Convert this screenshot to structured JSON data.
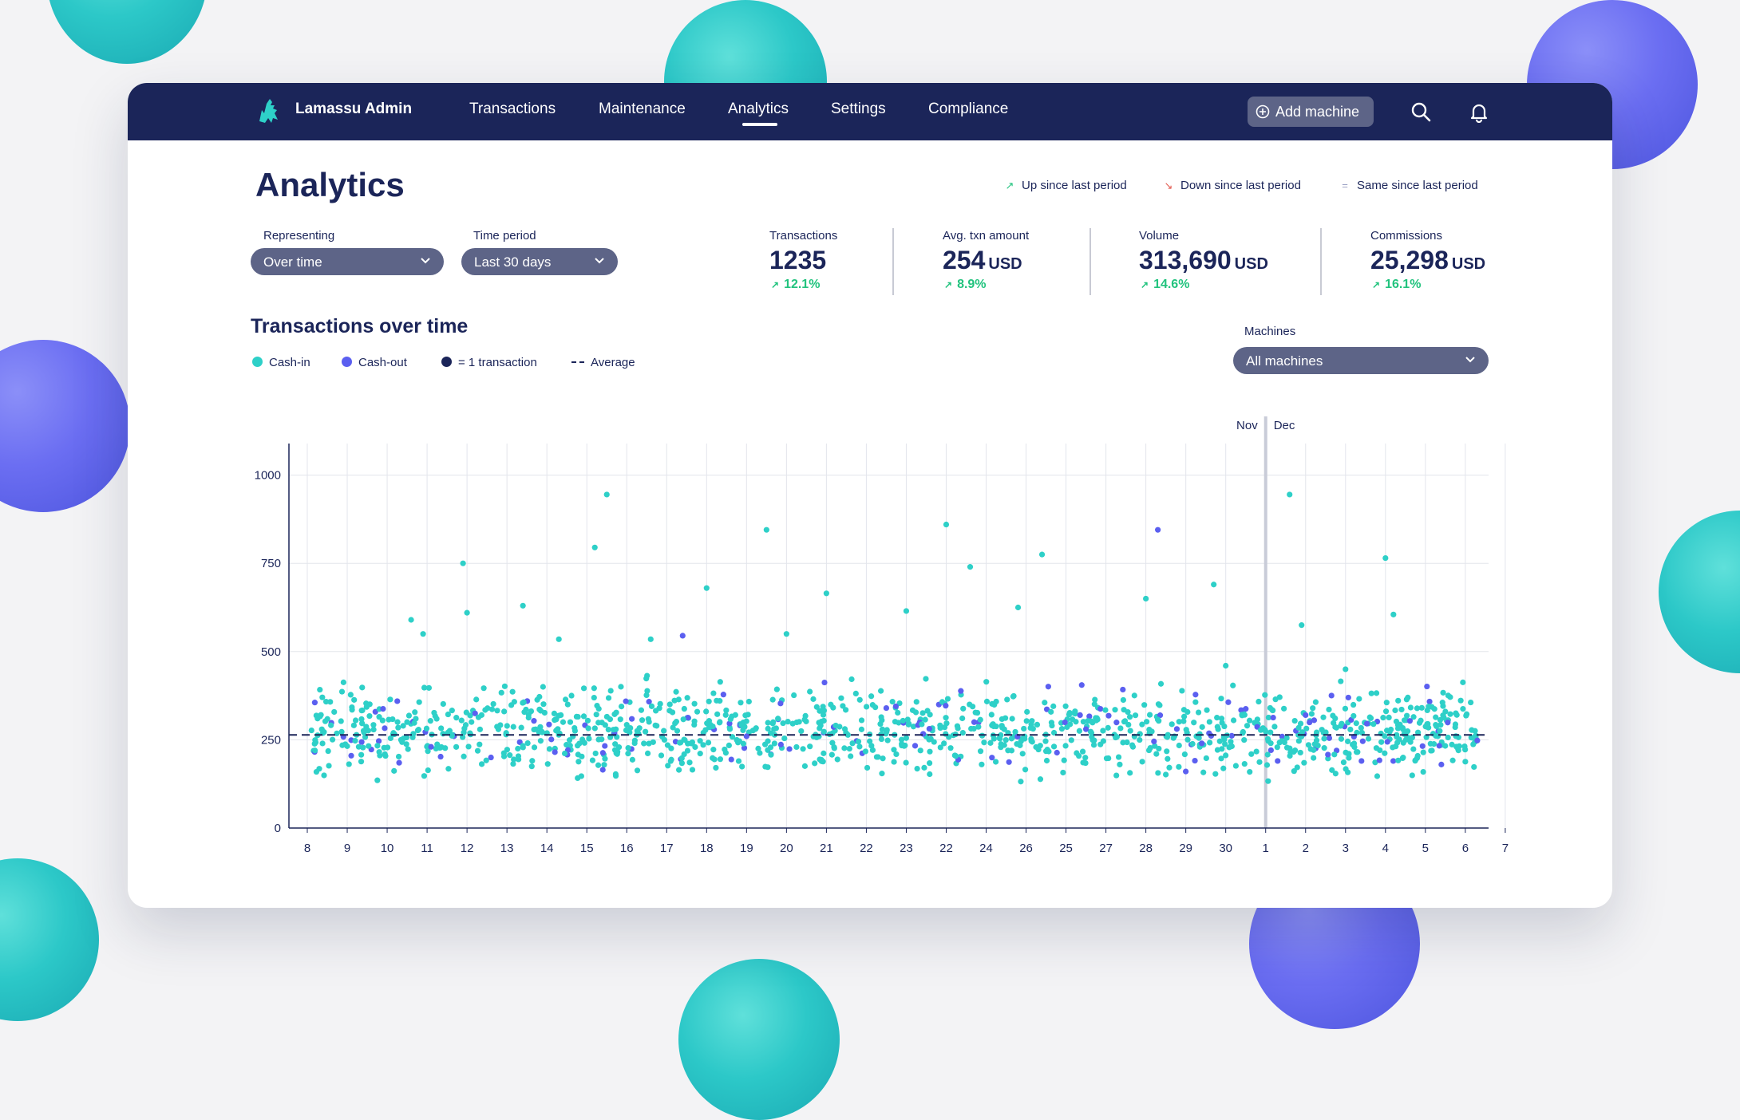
{
  "app": {
    "brand": "Lamassu Admin"
  },
  "nav": {
    "items": [
      {
        "label": "Transactions"
      },
      {
        "label": "Maintenance"
      },
      {
        "label": "Analytics",
        "active": true
      },
      {
        "label": "Settings"
      },
      {
        "label": "Compliance"
      }
    ],
    "add_machine_label": "Add machine",
    "icons": [
      "search-icon",
      "bell-icon"
    ]
  },
  "page": {
    "title": "Analytics",
    "trend_legend": {
      "up": "Up since last period",
      "down": "Down since last period",
      "same": "Same since last period"
    },
    "filters": {
      "representing_label": "Representing",
      "representing_value": "Over time",
      "period_label": "Time period",
      "period_value": "Last 30 days",
      "machines_label": "Machines",
      "machines_value": "All machines"
    },
    "kpis": [
      {
        "label": "Transactions",
        "value": "1235",
        "unit": "",
        "change": "12.1%",
        "trend": "up"
      },
      {
        "label": "Avg. txn amount",
        "value": "254",
        "unit": "USD",
        "change": "8.9%",
        "trend": "up"
      },
      {
        "label": "Volume",
        "value": "313,690",
        "unit": "USD",
        "change": "14.6%",
        "trend": "up"
      },
      {
        "label": "Commissions",
        "value": "25,298",
        "unit": "USD",
        "change": "16.1%",
        "trend": "up"
      }
    ]
  },
  "colors": {
    "navy": "#1b2559",
    "cash_in": "#2ed0c8",
    "cash_out": "#5b5ff0",
    "up": "#22c37e",
    "down": "#e2574c",
    "same": "#9aa0c4",
    "select_bg": "#5d6487"
  },
  "chart": {
    "title": "Transactions over time",
    "legend": {
      "cash_in": "Cash-in",
      "cash_out": "Cash-out",
      "one_txn": "= 1 transaction",
      "average": "Average"
    }
  },
  "chart_data": {
    "type": "scatter",
    "title": "Transactions over time",
    "ylim": [
      0,
      1100
    ],
    "yticks": [
      0,
      250,
      500,
      750,
      1000
    ],
    "x_tick_labels": [
      "8",
      "9",
      "10",
      "11",
      "12",
      "13",
      "14",
      "15",
      "16",
      "17",
      "18",
      "19",
      "20",
      "21",
      "22",
      "23",
      "22",
      "24",
      "26",
      "25",
      "27",
      "28",
      "29",
      "30",
      "1",
      "2",
      "3",
      "4",
      "5",
      "6",
      "7"
    ],
    "month_labels": [
      "Nov",
      "Dec"
    ],
    "average": 264,
    "series": [
      {
        "name": "Cash-in",
        "points": [
          [
            0.3,
            168
          ],
          [
            1.0,
            232
          ],
          [
            1.8,
            315
          ],
          [
            2.6,
            590
          ],
          [
            2.9,
            550
          ],
          [
            3.9,
            750
          ],
          [
            4.0,
            610
          ],
          [
            5.4,
            630
          ],
          [
            6.3,
            535
          ],
          [
            7.2,
            795
          ],
          [
            7.5,
            945
          ],
          [
            8.6,
            535
          ],
          [
            10.0,
            680
          ],
          [
            11.5,
            845
          ],
          [
            12.0,
            550
          ],
          [
            13.0,
            665
          ],
          [
            15.0,
            615
          ],
          [
            16.0,
            860
          ],
          [
            16.6,
            740
          ],
          [
            17.8,
            625
          ],
          [
            18.4,
            775
          ],
          [
            21.0,
            650
          ],
          [
            22.7,
            690
          ],
          [
            23.0,
            460
          ],
          [
            24.6,
            945
          ],
          [
            24.9,
            575
          ],
          [
            26.0,
            450
          ],
          [
            27.0,
            765
          ],
          [
            27.2,
            605
          ],
          [
            28.5,
            330
          ],
          [
            29.0,
            188
          ]
        ]
      },
      {
        "name": "Cash-out",
        "points": [
          [
            1.1,
            205
          ],
          [
            2.3,
            185
          ],
          [
            3.1,
            230
          ],
          [
            4.6,
            200
          ],
          [
            6.2,
            215
          ],
          [
            7.4,
            165
          ],
          [
            9.4,
            545
          ],
          [
            11.0,
            260
          ],
          [
            14.5,
            340
          ],
          [
            16.7,
            300
          ],
          [
            19.5,
            280
          ],
          [
            21.3,
            845
          ],
          [
            22.4,
            240
          ],
          [
            24.3,
            190
          ],
          [
            25.0,
            320
          ],
          [
            26.4,
            190
          ],
          [
            28.4,
            180
          ],
          [
            29.3,
            248
          ]
        ]
      }
    ]
  }
}
